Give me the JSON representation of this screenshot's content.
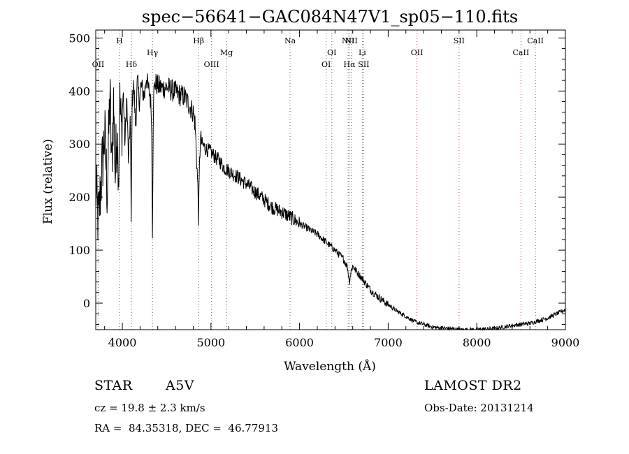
{
  "chart_data": {
    "type": "line",
    "title": "spec−56641−GAC084N47V1_sp05−110.fits",
    "xlabel": "Wavelength (Å)",
    "ylabel": "Flux (relative)",
    "xlim": [
      3700,
      9000
    ],
    "ylim": [
      -50,
      515
    ],
    "xticks": [
      4000,
      5000,
      6000,
      7000,
      8000,
      9000
    ],
    "yticks": [
      0,
      100,
      200,
      300,
      400,
      500
    ],
    "grid": false,
    "series": [
      {
        "x": [
          3700,
          3730,
          3760,
          3800,
          3830,
          3860,
          3880,
          3900,
          3920,
          3940,
          3960,
          3970,
          3990,
          4010,
          4030,
          4050,
          4070,
          4090,
          4100,
          4110,
          4130,
          4150,
          4170,
          4190,
          4210,
          4230,
          4250,
          4270,
          4290,
          4310,
          4330,
          4340,
          4350,
          4370,
          4400,
          4450,
          4500,
          4550,
          4600,
          4650,
          4700,
          4750,
          4800,
          4820,
          4840,
          4855,
          4861,
          4870,
          4880,
          4900,
          4950,
          5000,
          5050,
          5100,
          5150,
          5200,
          5300,
          5400,
          5500,
          5600,
          5700,
          5800,
          5900,
          6000,
          6100,
          6200,
          6300,
          6400,
          6500,
          6540,
          6563,
          6580,
          6600,
          6650,
          6700,
          6800,
          6900,
          7000,
          7100,
          7200,
          7300,
          7400,
          7500,
          7600,
          7700,
          7800,
          7900,
          8000,
          8100,
          8200,
          8300,
          8400,
          8500,
          8600,
          8700,
          8800,
          8900,
          9000
        ],
        "y": [
          220,
          150,
          230,
          320,
          210,
          400,
          250,
          380,
          240,
          330,
          250,
          380,
          320,
          400,
          300,
          390,
          260,
          360,
          150,
          380,
          410,
          330,
          420,
          380,
          410,
          400,
          390,
          430,
          405,
          395,
          360,
          140,
          390,
          415,
          410,
          405,
          408,
          402,
          398,
          392,
          390,
          375,
          360,
          340,
          270,
          200,
          160,
          250,
          310,
          300,
          290,
          285,
          275,
          268,
          255,
          250,
          238,
          225,
          210,
          195,
          180,
          172,
          162,
          150,
          140,
          130,
          115,
          100,
          82,
          68,
          40,
          60,
          70,
          58,
          48,
          25,
          10,
          -3,
          -15,
          -25,
          -35,
          -40,
          -45,
          -47,
          -48,
          -50,
          -50,
          -50,
          -49,
          -48,
          -45,
          -42,
          -40,
          -38,
          -33,
          -28,
          -20,
          -12
        ]
      }
    ],
    "annotations": [
      {
        "label": "OII",
        "x": 3727,
        "row": "low"
      },
      {
        "label": "H",
        "x": 3968,
        "row": "top"
      },
      {
        "label": "Hδ",
        "x": 4102,
        "row": "low"
      },
      {
        "label": "Hγ",
        "x": 4340,
        "row": "mid"
      },
      {
        "label": "Hβ",
        "x": 4861,
        "row": "top"
      },
      {
        "label": "OIII",
        "x": 5007,
        "row": "low"
      },
      {
        "label": "Mg",
        "x": 5175,
        "row": "mid"
      },
      {
        "label": "Na",
        "x": 5893,
        "row": "top"
      },
      {
        "label": "OI",
        "x": 6300,
        "row": "low"
      },
      {
        "label": "OI",
        "x": 6364,
        "row": "mid"
      },
      {
        "label": "NII",
        "x": 6548,
        "row": "top"
      },
      {
        "label": "Hα",
        "x": 6563,
        "row": "low"
      },
      {
        "label": "NII",
        "x": 6584,
        "row": "top"
      },
      {
        "label": "Li",
        "x": 6708,
        "row": "mid"
      },
      {
        "label": "SII",
        "x": 6724,
        "row": "low"
      },
      {
        "label": "OII",
        "x": 7325,
        "row": "mid"
      },
      {
        "label": "SII",
        "x": 7800,
        "row": "top"
      },
      {
        "label": "CaII",
        "x": 8498,
        "row": "mid"
      },
      {
        "label": "CaII",
        "x": 8662,
        "row": "top"
      }
    ]
  },
  "info": {
    "object_class": "STAR",
    "subclass": "A5V",
    "survey": "LAMOST DR2",
    "redshift": "cz = 19.8 ± 2.3 km/s",
    "obs_date": "Obs-Date: 20131214",
    "coords": "RA =  84.35318, DEC =  46.77913"
  }
}
